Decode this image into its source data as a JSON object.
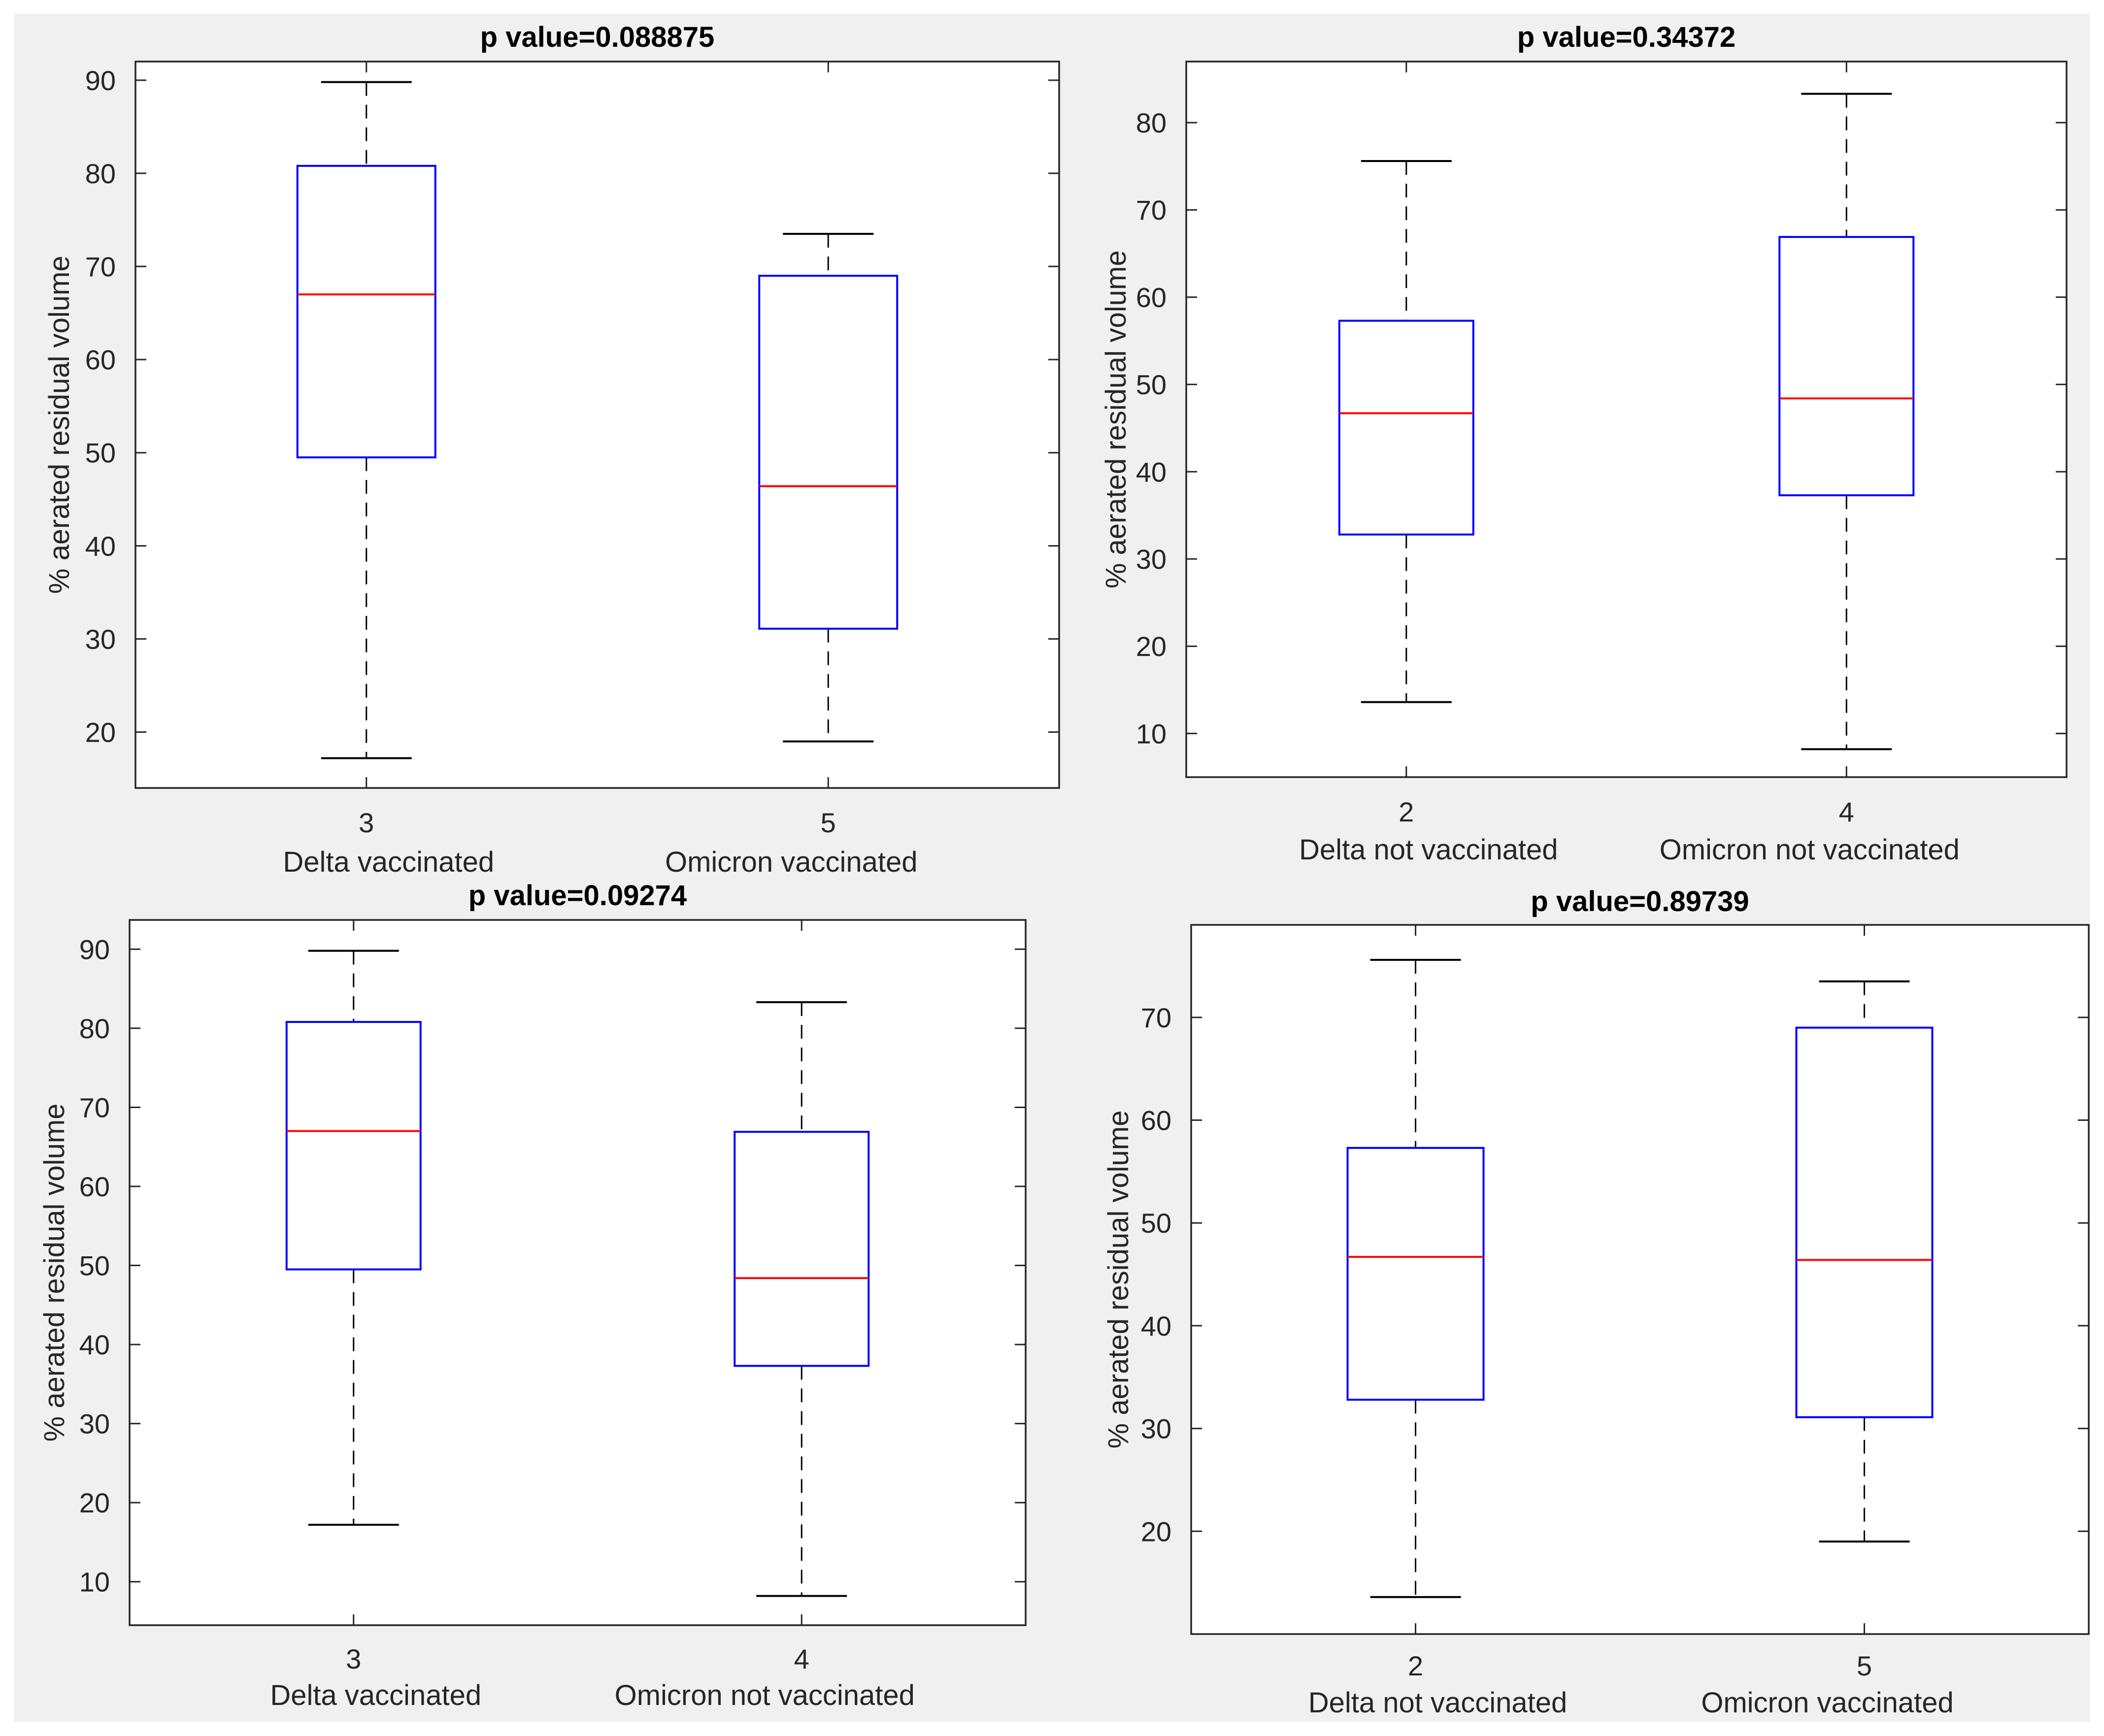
{
  "chart_data": [
    {
      "type": "box",
      "title": "p value=0.088875",
      "ylabel": "% aerated residual volume",
      "ylim": [
        14,
        92
      ],
      "yticks": [
        20,
        30,
        40,
        50,
        60,
        70,
        80,
        90
      ],
      "boxes": [
        {
          "tick": "3",
          "group": "Delta vaccinated",
          "min": 17.2,
          "q1": 49.5,
          "median": 67.0,
          "q3": 80.8,
          "max": 89.8
        },
        {
          "tick": "5",
          "group": "Omicron vaccinated",
          "min": 19.0,
          "q1": 31.1,
          "median": 46.4,
          "q3": 69.0,
          "max": 73.5
        }
      ]
    },
    {
      "type": "box",
      "title": "p value=0.34372",
      "ylabel": "% aerated residual volume",
      "ylim": [
        5,
        87
      ],
      "yticks": [
        10,
        20,
        30,
        40,
        50,
        60,
        70,
        80
      ],
      "boxes": [
        {
          "tick": "2",
          "group": "Delta not vaccinated",
          "min": 13.6,
          "q1": 32.8,
          "median": 46.7,
          "q3": 57.3,
          "max": 75.6
        },
        {
          "tick": "4",
          "group": "Omicron not vaccinated",
          "min": 8.2,
          "q1": 37.3,
          "median": 48.4,
          "q3": 66.9,
          "max": 83.3
        }
      ]
    },
    {
      "type": "box",
      "title": "p value=0.09274",
      "ylabel": "% aerated residual volume",
      "ylim": [
        4.5,
        93.7
      ],
      "yticks": [
        10,
        20,
        30,
        40,
        50,
        60,
        70,
        80,
        90
      ],
      "boxes": [
        {
          "tick": "3",
          "group": "Delta vaccinated",
          "min": 17.2,
          "q1": 49.5,
          "median": 67.0,
          "q3": 80.8,
          "max": 89.8
        },
        {
          "tick": "4",
          "group": "Omicron not vaccinated",
          "min": 8.2,
          "q1": 37.3,
          "median": 48.4,
          "q3": 66.9,
          "max": 83.3
        }
      ]
    },
    {
      "type": "box",
      "title": "p value=0.89739",
      "ylabel": "% aerated residual volume",
      "ylim": [
        10,
        79
      ],
      "yticks": [
        20,
        30,
        40,
        50,
        60,
        70
      ],
      "boxes": [
        {
          "tick": "2",
          "group": "Delta not vaccinated",
          "min": 13.6,
          "q1": 32.8,
          "median": 46.7,
          "q3": 57.3,
          "max": 75.6
        },
        {
          "tick": "5",
          "group": "Omicron vaccinated",
          "min": 19.0,
          "q1": 31.1,
          "median": 46.4,
          "q3": 69.0,
          "max": 73.5
        }
      ]
    }
  ],
  "colors": {
    "box": "#0000ff",
    "median": "#ff0000",
    "whisker": "#000000",
    "axes": "#262626",
    "panel_background": "#f0f0f0",
    "plot_background": "#ffffff"
  }
}
